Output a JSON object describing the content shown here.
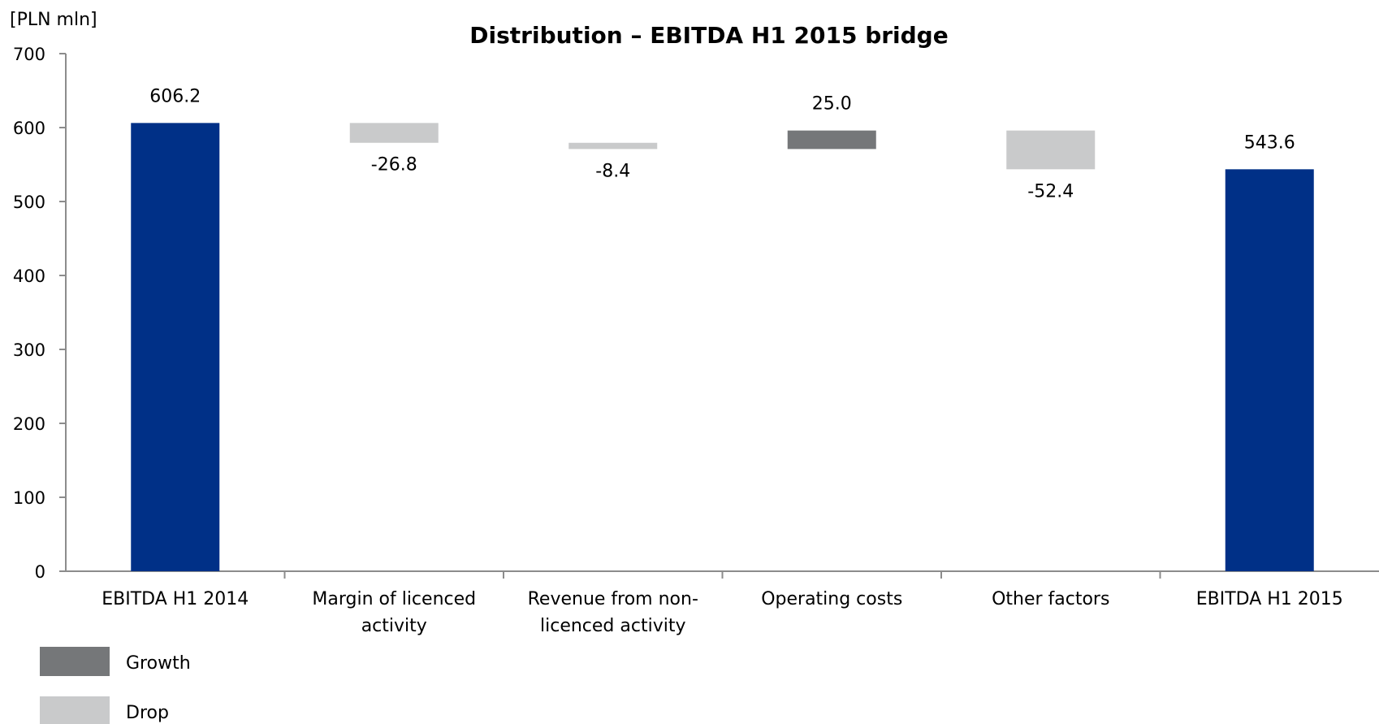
{
  "chart_data": {
    "type": "waterfall",
    "title": "Distribution – EBITDA H1 2015 bridge",
    "unit_label": "[PLN mln]",
    "ylim": [
      0,
      700
    ],
    "yticks": [
      "0",
      "100",
      "200",
      "300",
      "400",
      "500",
      "600",
      "700"
    ],
    "grid": false,
    "legend_position": "bottom-left",
    "categories": [
      [
        "EBITDA H1 2014"
      ],
      [
        "Margin of licenced",
        "activity"
      ],
      [
        "Revenue from non-",
        "licenced activity"
      ],
      [
        "Operating costs"
      ],
      [
        "Other factors"
      ],
      [
        "EBITDA H1 2015"
      ]
    ],
    "bars": [
      {
        "kind": "total",
        "base": 0,
        "top": 606.2,
        "label": "606.2",
        "label_pos": "above"
      },
      {
        "kind": "drop",
        "base": 579.4,
        "top": 606.2,
        "label": "-26.8",
        "label_pos": "below"
      },
      {
        "kind": "drop",
        "base": 571.0,
        "top": 579.4,
        "label": "-8.4",
        "label_pos": "below"
      },
      {
        "kind": "growth",
        "base": 571.0,
        "top": 596.0,
        "label": "25.0",
        "label_pos": "above"
      },
      {
        "kind": "drop",
        "base": 543.6,
        "top": 596.0,
        "label": "-52.4",
        "label_pos": "below"
      },
      {
        "kind": "total",
        "base": 0,
        "top": 543.6,
        "label": "543.6",
        "label_pos": "above"
      }
    ],
    "legend": [
      {
        "kind": "growth",
        "label": "Growth"
      },
      {
        "kind": "drop",
        "label": "Drop"
      }
    ],
    "colors": {
      "total": "#003087",
      "growth": "#757779",
      "drop": "#c9cacb",
      "axis": "#8c8c8c"
    }
  }
}
